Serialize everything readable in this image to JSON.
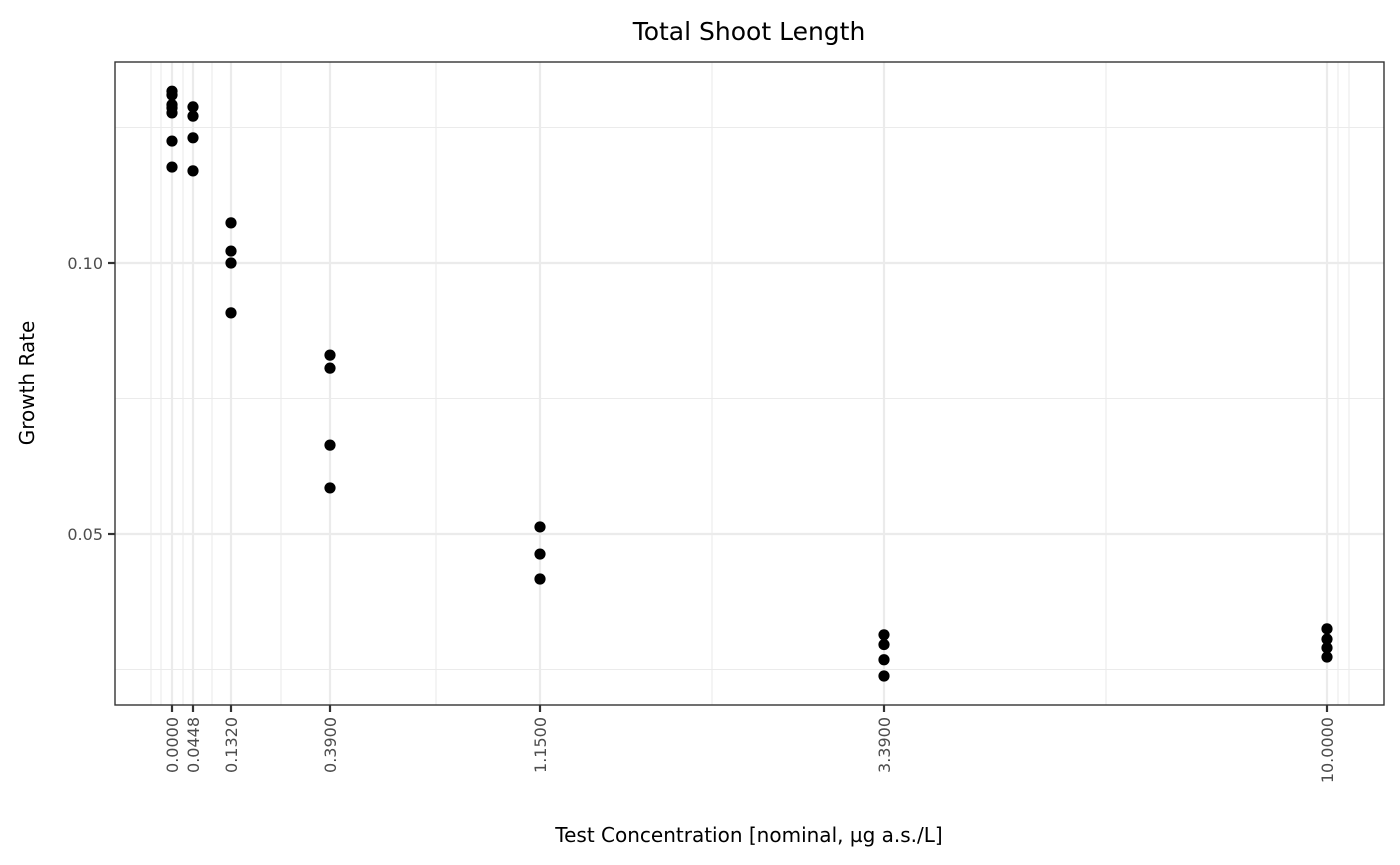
{
  "chart_data": {
    "type": "scatter",
    "title": "Total Shoot Length",
    "xlabel": "Test Concentration [nominal, µg a.s./L]",
    "ylabel": "Growth Rate",
    "x_scale": "transformed (non-linear, compressed at high concentrations)",
    "x_ticks": [
      "0.0000",
      "0.0448",
      "0.1320",
      "0.3900",
      "1.1500",
      "3.3900",
      "10.0000"
    ],
    "y_ticks": [
      "0.05",
      "0.10"
    ],
    "ylim": [
      0.0195,
      0.138
    ],
    "grid": true,
    "legend": null,
    "points": [
      {
        "x": 0.0,
        "y": 0.1317
      },
      {
        "x": 0.0,
        "y": 0.131
      },
      {
        "x": 0.0,
        "y": 0.1292
      },
      {
        "x": 0.0,
        "y": 0.1286
      },
      {
        "x": 0.0,
        "y": 0.1277
      },
      {
        "x": 0.0,
        "y": 0.1225
      },
      {
        "x": 0.0,
        "y": 0.1177
      },
      {
        "x": 0.0448,
        "y": 0.1288
      },
      {
        "x": 0.0448,
        "y": 0.1271
      },
      {
        "x": 0.0448,
        "y": 0.1231
      },
      {
        "x": 0.0448,
        "y": 0.117
      },
      {
        "x": 0.132,
        "y": 0.1074
      },
      {
        "x": 0.132,
        "y": 0.1022
      },
      {
        "x": 0.132,
        "y": 0.1
      },
      {
        "x": 0.132,
        "y": 0.0908
      },
      {
        "x": 0.39,
        "y": 0.083
      },
      {
        "x": 0.39,
        "y": 0.0806
      },
      {
        "x": 0.39,
        "y": 0.0664
      },
      {
        "x": 0.39,
        "y": 0.0585
      },
      {
        "x": 1.15,
        "y": 0.0513
      },
      {
        "x": 1.15,
        "y": 0.0463
      },
      {
        "x": 1.15,
        "y": 0.0417
      },
      {
        "x": 3.39,
        "y": 0.0314
      },
      {
        "x": 3.39,
        "y": 0.0296
      },
      {
        "x": 3.39,
        "y": 0.0268
      },
      {
        "x": 3.39,
        "y": 0.0238
      },
      {
        "x": 10.0,
        "y": 0.0325
      },
      {
        "x": 10.0,
        "y": 0.0306
      },
      {
        "x": 10.0,
        "y": 0.029
      },
      {
        "x": 10.0,
        "y": 0.0273
      }
    ],
    "colors": {
      "point": "#000000",
      "grid": "#ebebeb",
      "border": "#333333",
      "tick_text": "#4d4d4d"
    }
  }
}
